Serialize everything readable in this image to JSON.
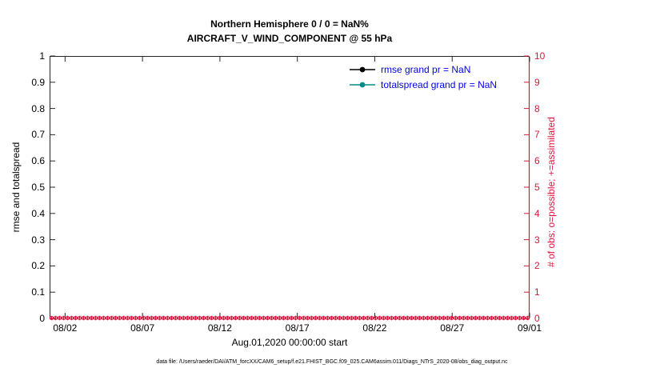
{
  "chart_data": {
    "type": "line",
    "title": "Northern Hemisphere 0 / 0 = NaN%",
    "subtitle": "AIRCRAFT_V_WIND_COMPONENT @ 55 hPa",
    "xlabel": "Aug.01,2020 00:00:00 start",
    "ylabel_left": "rmse and totalspread",
    "ylabel_right": "# of obs: o=possible; +=assimilated",
    "axis_left_color": "#000000",
    "axis_right_color": "#dc143c",
    "legend_text_color": "#0000ee",
    "grid": false,
    "legend_position": "top-right-inside",
    "x_axis": {
      "range_days": [
        1,
        32
      ],
      "tick_days": [
        2,
        7,
        12,
        17,
        22,
        27,
        32
      ],
      "tick_labels": [
        "08/02",
        "08/07",
        "08/12",
        "08/17",
        "08/22",
        "08/27",
        "09/01"
      ]
    },
    "y_axis_left": {
      "lim": [
        0,
        1
      ],
      "tick_values": [
        0,
        0.1,
        0.2,
        0.3,
        0.4,
        0.5,
        0.6,
        0.7,
        0.8,
        0.9,
        1
      ],
      "tick_labels": [
        "0",
        "0.1",
        "0.2",
        "0.3",
        "0.4",
        "0.5",
        "0.6",
        "0.7",
        "0.8",
        "0.9",
        "1"
      ]
    },
    "y_axis_right": {
      "lim": [
        0,
        10
      ],
      "tick_values": [
        0,
        1,
        2,
        3,
        4,
        5,
        6,
        7,
        8,
        9,
        10
      ],
      "tick_labels": [
        "0",
        "1",
        "2",
        "3",
        "4",
        "5",
        "6",
        "7",
        "8",
        "9",
        "10"
      ]
    },
    "series": [
      {
        "name": "rmse grand pr = NaN",
        "color": "#000000",
        "marker": "filled-circle",
        "values": "NaN"
      },
      {
        "name": "totalspread grand pr = NaN",
        "color": "#008b8b",
        "marker": "filled-circle",
        "values": "NaN"
      }
    ],
    "obs_markers": {
      "description": "o=possible and +=assimilated observation counts plotted on right axis, all values 0",
      "value": 0,
      "count": 120,
      "color": "#dc143c"
    }
  },
  "footer": {
    "text": "data file: /Users/raeder/DAI/ATM_forcXX/CAM6_setup/f.e21.FHIST_BGC.f09_025.CAM6assim.011/Diags_NTrS_2020-08/obs_diag_output.nc"
  }
}
